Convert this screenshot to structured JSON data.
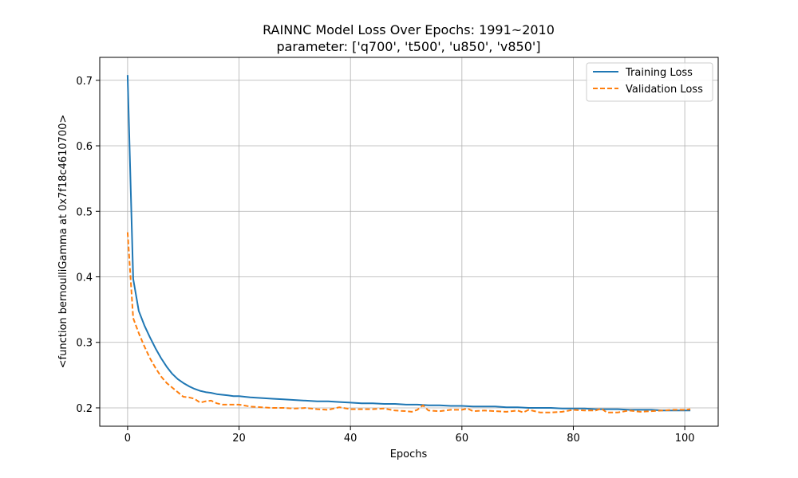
{
  "chart_data": {
    "type": "line",
    "title": "RAINNC Model Loss Over Epochs: 1991~2010",
    "subtitle": "parameter: ['q700', 't500', 'u850', 'v850']",
    "xlabel": "Epochs",
    "ylabel": "<function bernoulliGamma at 0x7f18c4610700>",
    "xlim": [
      -5,
      106
    ],
    "ylim": [
      0.172,
      0.735
    ],
    "xticks": [
      0,
      20,
      40,
      60,
      80,
      100
    ],
    "yticks": [
      0.2,
      0.3,
      0.4,
      0.5,
      0.6,
      0.7
    ],
    "xtick_labels": [
      "0",
      "20",
      "40",
      "60",
      "80",
      "100"
    ],
    "ytick_labels": [
      "0.2",
      "0.3",
      "0.4",
      "0.5",
      "0.6",
      "0.7"
    ],
    "grid": true,
    "legend_position": "top-right",
    "series": [
      {
        "name": "Training Loss",
        "color": "#1f77b4",
        "style": "solid",
        "x": [
          0,
          1,
          2,
          3,
          4,
          5,
          6,
          7,
          8,
          9,
          10,
          11,
          12,
          13,
          14,
          15,
          16,
          17,
          18,
          19,
          20,
          22,
          24,
          26,
          28,
          30,
          32,
          34,
          36,
          38,
          40,
          42,
          44,
          46,
          48,
          50,
          52,
          54,
          56,
          58,
          60,
          62,
          64,
          66,
          68,
          70,
          72,
          74,
          76,
          78,
          80,
          82,
          84,
          86,
          88,
          90,
          92,
          94,
          96,
          98,
          100,
          101
        ],
        "values": [
          0.708,
          0.397,
          0.348,
          0.326,
          0.308,
          0.291,
          0.276,
          0.263,
          0.252,
          0.244,
          0.238,
          0.233,
          0.229,
          0.226,
          0.224,
          0.223,
          0.221,
          0.22,
          0.219,
          0.218,
          0.218,
          0.216,
          0.215,
          0.214,
          0.213,
          0.212,
          0.211,
          0.21,
          0.21,
          0.209,
          0.208,
          0.207,
          0.207,
          0.206,
          0.206,
          0.205,
          0.205,
          0.204,
          0.204,
          0.203,
          0.203,
          0.202,
          0.202,
          0.202,
          0.201,
          0.201,
          0.2,
          0.2,
          0.2,
          0.199,
          0.199,
          0.199,
          0.198,
          0.198,
          0.198,
          0.197,
          0.197,
          0.197,
          0.196,
          0.196,
          0.196,
          0.196
        ]
      },
      {
        "name": "Validation Loss",
        "color": "#ff7f0e",
        "style": "dashed",
        "x": [
          0,
          1,
          2,
          3,
          4,
          5,
          6,
          7,
          8,
          9,
          10,
          11,
          12,
          13,
          14,
          15,
          16,
          17,
          18,
          19,
          20,
          22,
          24,
          26,
          28,
          30,
          32,
          34,
          36,
          38,
          40,
          42,
          44,
          46,
          48,
          50,
          51,
          52,
          53,
          54,
          56,
          58,
          60,
          61,
          62,
          64,
          66,
          68,
          70,
          71,
          72,
          74,
          76,
          78,
          80,
          82,
          84,
          85,
          86,
          88,
          90,
          92,
          94,
          96,
          98,
          100,
          101
        ],
        "values": [
          0.468,
          0.337,
          0.314,
          0.294,
          0.276,
          0.261,
          0.248,
          0.238,
          0.231,
          0.224,
          0.217,
          0.216,
          0.214,
          0.208,
          0.21,
          0.211,
          0.207,
          0.205,
          0.205,
          0.205,
          0.205,
          0.202,
          0.201,
          0.2,
          0.2,
          0.199,
          0.2,
          0.198,
          0.197,
          0.201,
          0.198,
          0.198,
          0.198,
          0.199,
          0.196,
          0.195,
          0.194,
          0.197,
          0.204,
          0.196,
          0.195,
          0.197,
          0.197,
          0.199,
          0.195,
          0.196,
          0.195,
          0.194,
          0.196,
          0.193,
          0.197,
          0.193,
          0.193,
          0.194,
          0.197,
          0.196,
          0.196,
          0.199,
          0.193,
          0.193,
          0.196,
          0.194,
          0.195,
          0.196,
          0.197,
          0.197,
          0.198
        ]
      }
    ]
  }
}
